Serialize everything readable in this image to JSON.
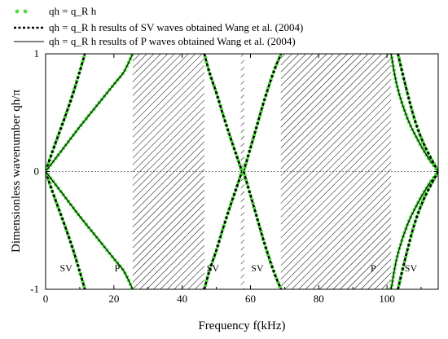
{
  "chart_data": {
    "type": "line",
    "xlim": [
      0,
      115
    ],
    "ylim": [
      -1,
      1
    ],
    "xticks": [
      0,
      20,
      40,
      60,
      80,
      100
    ],
    "yticks": [
      -1,
      0,
      1
    ],
    "xlabel": "Frequency  f(kHz)",
    "ylabel": "Dimensionless wavenumber  qh/π",
    "legend_placement": "top-left, above plot",
    "legend": [
      {
        "label": "qh = q_R h",
        "style": "green-dots"
      },
      {
        "label": "qh = q_R h results of SV waves obtained Wang et al. (2004)",
        "style": "black-dotted"
      },
      {
        "label": "qh = q_R h results of P waves obtained Wang et al. (2004)",
        "style": "black-solid"
      }
    ],
    "stop_bands": [
      {
        "from": 25.5,
        "to": 46.5
      },
      {
        "from": 57.2,
        "to": 58.2
      },
      {
        "from": 68.9,
        "to": 101.2
      }
    ],
    "band_labels": [
      {
        "text": "SV",
        "x": 6,
        "y": -0.82
      },
      {
        "text": "P",
        "x": 21,
        "y": -0.82
      },
      {
        "text": "SV",
        "x": 49,
        "y": -0.82
      },
      {
        "text": "SV",
        "x": 62,
        "y": -0.82
      },
      {
        "text": "P",
        "x": 96,
        "y": -0.82
      },
      {
        "text": "SV",
        "x": 107,
        "y": -0.82
      }
    ],
    "series": [
      {
        "name": "SV branch 1 (0–11.5 kHz)",
        "kind": "sv",
        "points": [
          [
            0,
            0
          ],
          [
            2,
            0.17
          ],
          [
            4,
            0.33
          ],
          [
            6,
            0.49
          ],
          [
            8,
            0.66
          ],
          [
            10,
            0.85
          ],
          [
            11.5,
            1
          ]
        ]
      },
      {
        "name": "P branch 1 (0–25.5 kHz)",
        "kind": "p",
        "points": [
          [
            0,
            0
          ],
          [
            5,
            0.19
          ],
          [
            10,
            0.38
          ],
          [
            15,
            0.56
          ],
          [
            20,
            0.74
          ],
          [
            23,
            0.85
          ],
          [
            25.5,
            1
          ]
        ]
      },
      {
        "name": "SV branch 2 (46.5–57.5 kHz)",
        "kind": "sv",
        "points": [
          [
            46.5,
            1
          ],
          [
            48,
            0.84
          ],
          [
            50,
            0.67
          ],
          [
            52,
            0.48
          ],
          [
            54,
            0.3
          ],
          [
            56,
            0.13
          ],
          [
            57.5,
            0
          ]
        ]
      },
      {
        "name": "SV branch 3 (58–69 kHz)",
        "kind": "sv",
        "points": [
          [
            58,
            0
          ],
          [
            60,
            0.2
          ],
          [
            62,
            0.4
          ],
          [
            64,
            0.6
          ],
          [
            66,
            0.78
          ],
          [
            67.5,
            0.9
          ],
          [
            69,
            1
          ]
        ]
      },
      {
        "name": "P branch 2 (101–115 kHz)",
        "kind": "p",
        "points": [
          [
            101.2,
            1
          ],
          [
            103,
            0.72
          ],
          [
            106,
            0.45
          ],
          [
            109,
            0.27
          ],
          [
            112,
            0.12
          ],
          [
            115,
            0
          ]
        ]
      },
      {
        "name": "SV branch 4 (103–115 kHz)",
        "kind": "sv",
        "points": [
          [
            103.2,
            1
          ],
          [
            105,
            0.78
          ],
          [
            108,
            0.45
          ],
          [
            111,
            0.22
          ],
          [
            115,
            0
          ]
        ]
      }
    ]
  }
}
